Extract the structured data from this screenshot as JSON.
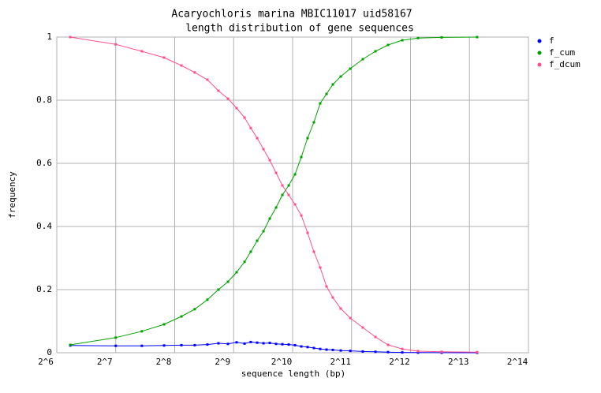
{
  "chart_data": {
    "type": "line",
    "title": "Acaryochloris marina MBIC11017 uid58167",
    "subtitle": "length distribution of gene sequences",
    "x_label": "sequence length (bp)",
    "y_label": "frequency",
    "x_scale": "log",
    "log_base": 2,
    "xlim": [
      64,
      16384
    ],
    "xticks": [
      {
        "value": 64,
        "label": "2^6"
      },
      {
        "value": 128,
        "label": "2^7"
      },
      {
        "value": 256,
        "label": "2^8"
      },
      {
        "value": 512,
        "label": "2^9"
      },
      {
        "value": 1024,
        "label": "2^10"
      },
      {
        "value": 2048,
        "label": "2^11"
      },
      {
        "value": 4096,
        "label": "2^12"
      },
      {
        "value": 8192,
        "label": "2^13"
      },
      {
        "value": 16384,
        "label": "2^14"
      }
    ],
    "ylim": [
      0,
      1
    ],
    "yticks": [
      0,
      0.2,
      0.4,
      0.6,
      0.8,
      1
    ],
    "grid": true,
    "legend_position": "top-right-outside",
    "x": [
      75,
      128,
      174,
      226,
      277,
      324,
      376,
      428,
      479,
      530,
      582,
      626,
      675,
      727,
      783,
      843,
      908,
      978,
      1053,
      1134,
      1221,
      1315,
      1416,
      1526,
      1643,
      1803,
      2016,
      2337,
      2712,
      3145,
      3716,
      4474,
      5906,
      8960
    ],
    "series": [
      {
        "name": "f",
        "color": "#0000ff",
        "values": [
          0.023,
          0.022,
          0.022,
          0.023,
          0.024,
          0.024,
          0.026,
          0.03,
          0.028,
          0.033,
          0.029,
          0.034,
          0.032,
          0.03,
          0.031,
          0.028,
          0.027,
          0.026,
          0.024,
          0.02,
          0.018,
          0.015,
          0.012,
          0.01,
          0.009,
          0.007,
          0.006,
          0.004,
          0.003,
          0.002,
          0.001,
          0.0005,
          0.0002,
          0.0001
        ]
      },
      {
        "name": "f_cum",
        "color": "#00a000",
        "values": [
          0.025,
          0.048,
          0.068,
          0.09,
          0.115,
          0.138,
          0.168,
          0.2,
          0.225,
          0.255,
          0.288,
          0.32,
          0.355,
          0.385,
          0.425,
          0.46,
          0.5,
          0.53,
          0.565,
          0.62,
          0.68,
          0.73,
          0.79,
          0.82,
          0.85,
          0.875,
          0.9,
          0.93,
          0.955,
          0.975,
          0.99,
          0.997,
          0.999,
          1.0
        ]
      },
      {
        "name": "f_dcum",
        "color": "#ff4f8b",
        "values": [
          1.0,
          0.977,
          0.955,
          0.935,
          0.91,
          0.888,
          0.865,
          0.83,
          0.805,
          0.775,
          0.745,
          0.712,
          0.68,
          0.645,
          0.61,
          0.57,
          0.53,
          0.5,
          0.47,
          0.435,
          0.38,
          0.32,
          0.27,
          0.21,
          0.175,
          0.14,
          0.11,
          0.08,
          0.05,
          0.025,
          0.012,
          0.005,
          0.003,
          0.002
        ]
      }
    ]
  }
}
